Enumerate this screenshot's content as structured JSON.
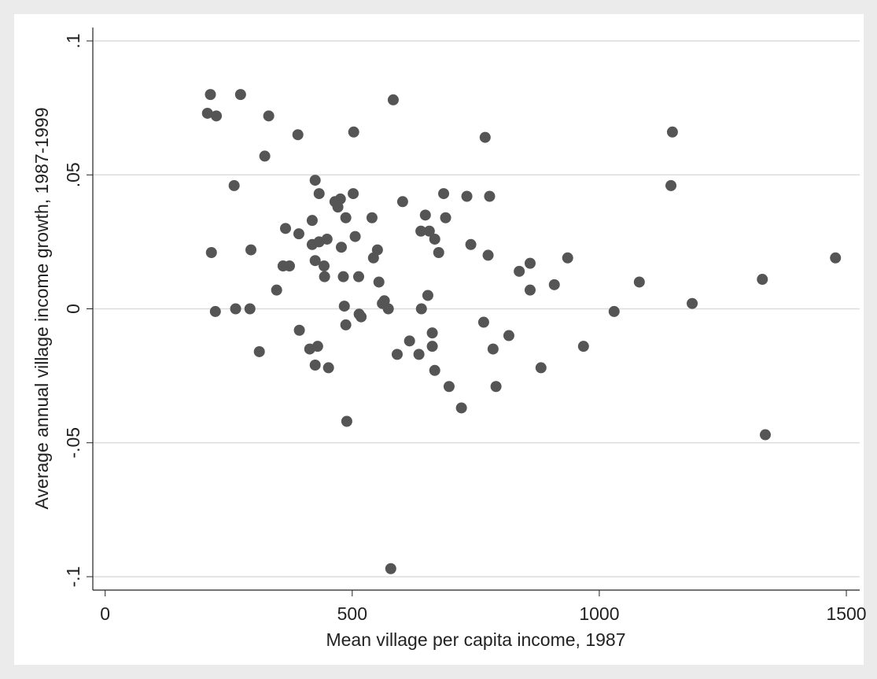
{
  "chart_data": {
    "type": "scatter",
    "x_label": "Mean village per capita income, 1987",
    "y_label": "Average annual village income growth, 1987-1999",
    "x": [
      207,
      213,
      225,
      274,
      331,
      323,
      390,
      215,
      223,
      261,
      264,
      293,
      295,
      312,
      347,
      360,
      365,
      373,
      392,
      393,
      414,
      419,
      419,
      425,
      425,
      425,
      430,
      433,
      433,
      443,
      444,
      449,
      452,
      465,
      471,
      476,
      478,
      482,
      484,
      487,
      487,
      489,
      503,
      502,
      506,
      513,
      514,
      518,
      540,
      543,
      551,
      554,
      561,
      565,
      573,
      578,
      583,
      591,
      602,
      616,
      635,
      639,
      640,
      648,
      653,
      656,
      662,
      662,
      667,
      667,
      675,
      685,
      689,
      696,
      721,
      732,
      740,
      766,
      769,
      775,
      778,
      785,
      791,
      817,
      838,
      860,
      860,
      882,
      909,
      936,
      968,
      1030,
      1081,
      1145,
      1148,
      1188,
      1330,
      1336,
      1478
    ],
    "values": [
      0.073,
      0.08,
      0.072,
      0.08,
      0.072,
      0.057,
      0.065,
      0.021,
      -0.001,
      0.046,
      0,
      0,
      0.022,
      -0.016,
      0.007,
      0.016,
      0.03,
      0.016,
      0.028,
      -0.008,
      -0.015,
      0.033,
      0.024,
      0.048,
      0.018,
      -0.021,
      -0.014,
      0.043,
      0.025,
      0.016,
      0.012,
      0.026,
      -0.022,
      0.04,
      0.038,
      0.041,
      0.023,
      0.012,
      0.001,
      0.034,
      -0.006,
      -0.042,
      0.066,
      0.043,
      0.027,
      0.012,
      -0.002,
      -0.003,
      0.034,
      0.019,
      0.022,
      0.01,
      0.002,
      0.003,
      0,
      -0.097,
      0.078,
      -0.017,
      0.04,
      -0.012,
      -0.017,
      0.029,
      0,
      0.035,
      0.005,
      0.029,
      -0.009,
      -0.014,
      0.026,
      -0.023,
      0.021,
      0.043,
      0.034,
      -0.029,
      -0.037,
      0.042,
      0.024,
      -0.005,
      0.064,
      0.02,
      0.042,
      -0.015,
      -0.029,
      -0.01,
      0.014,
      0.017,
      0.007,
      -0.022,
      0.009,
      0.019,
      -0.014,
      -0.001,
      0.01,
      0.046,
      0.066,
      0.002,
      0.011,
      -0.047,
      0.019
    ],
    "color": "#555555",
    "xlim": [
      -25,
      1527
    ],
    "xticks": [
      0,
      500,
      1000,
      1500
    ],
    "ylim": [
      -0.105,
      0.105
    ],
    "yticks": [
      {
        "value": -0.1,
        "label": "-.1"
      },
      {
        "value": -0.05,
        "label": "-.05"
      },
      0,
      {
        "value": 0.05,
        "label": ".05"
      },
      {
        "value": 0.1,
        "label": ".1"
      }
    ],
    "grid": true
  }
}
